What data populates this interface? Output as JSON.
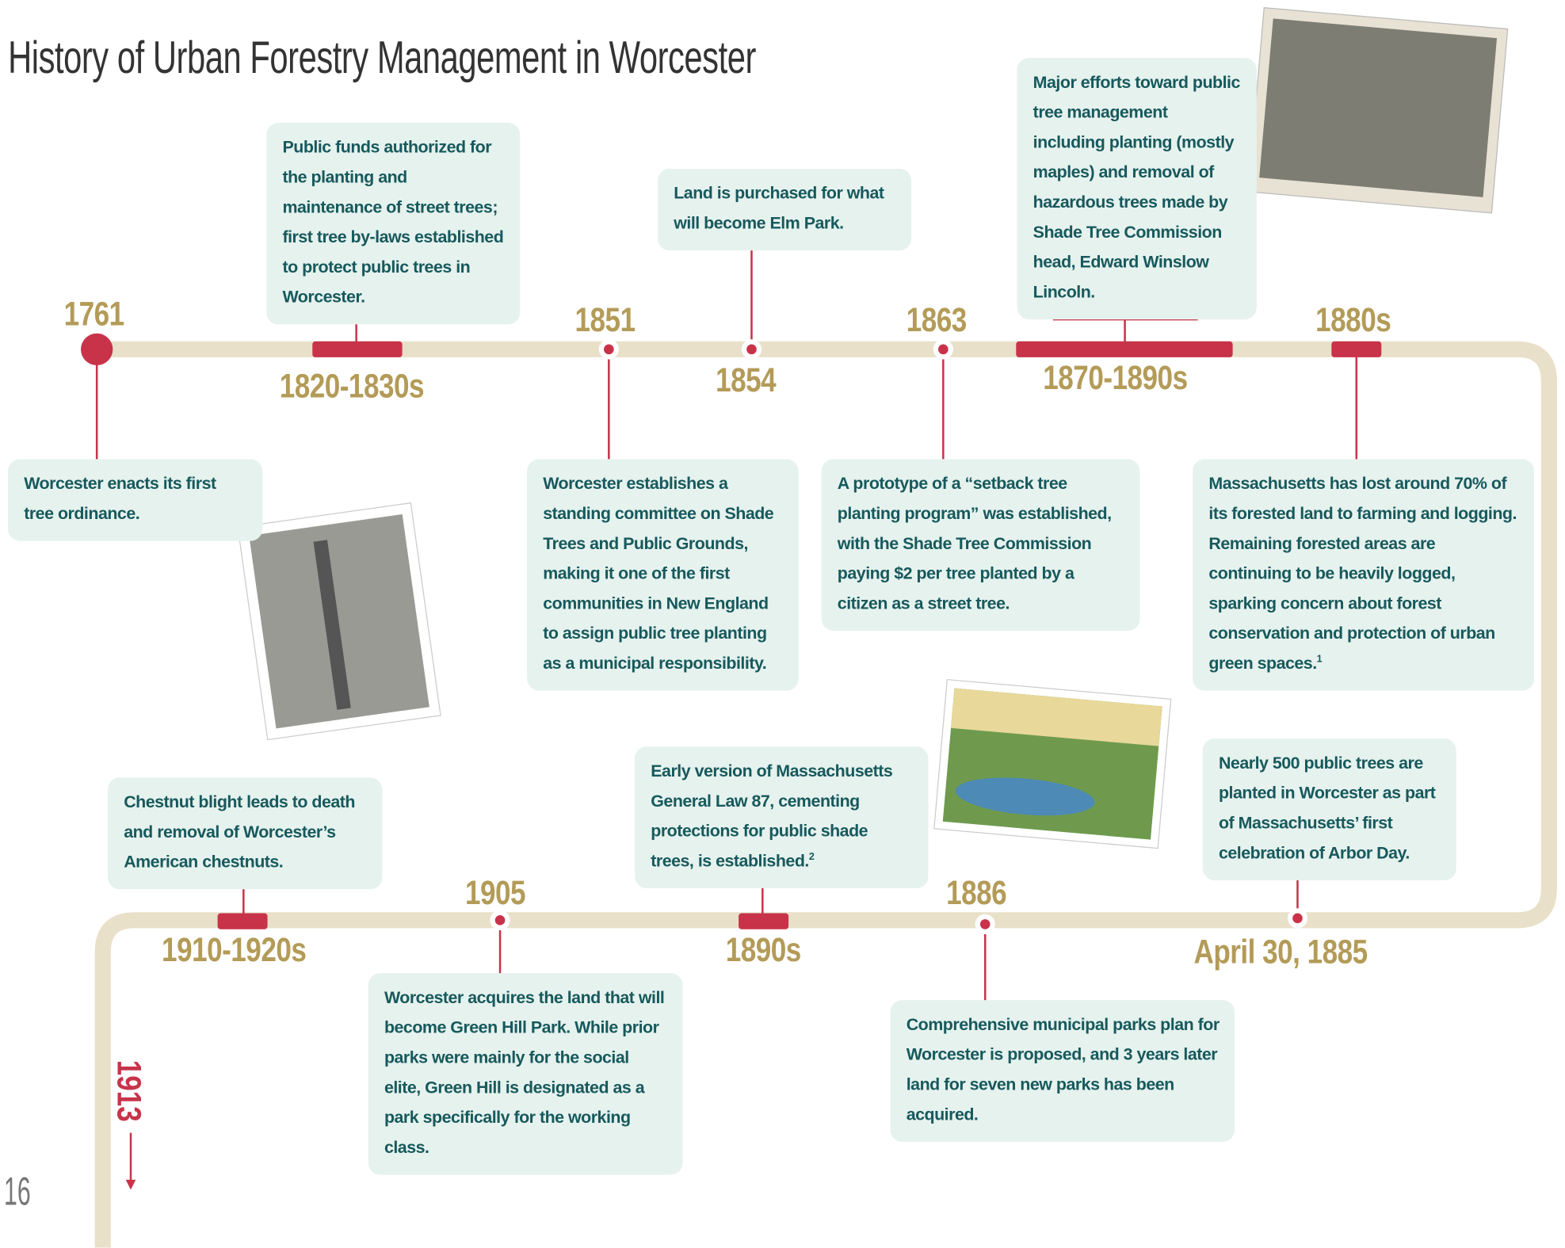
{
  "title": "History of Urban Forestry Management in Worcester",
  "page_number": "16",
  "continues": "1913",
  "events": [
    {
      "date": "1761",
      "text": "Worcester enacts its first tree ordinance."
    },
    {
      "date": "1820-1830s",
      "text": "Public funds authorized for the planting and maintenance of street trees; first tree by-laws established to protect public trees in Worcester."
    },
    {
      "date": "1851",
      "text": "Worcester establishes a standing committee on Shade Trees and Public Grounds, making it one of the first communities in New England to assign public tree planting as a municipal responsibility."
    },
    {
      "date": "1854",
      "text": "Land is purchased for what will become Elm Park."
    },
    {
      "date": "1863",
      "text": "A prototype of a “setback tree planting program” was established, with the Shade Tree Commission paying $2 per tree planted by a citizen as a street tree."
    },
    {
      "date": "1870-1890s",
      "text": "Major efforts toward public tree management including planting (mostly maples) and removal of hazardous trees made by Shade Tree Commission head, Edward Winslow Lincoln."
    },
    {
      "date": "1880s",
      "text": "Massachusetts has lost around 70% of its forested land to farming and logging. Remaining forested areas are continuing to be heavily logged, sparking concern about forest conservation and protection of urban green spaces.",
      "note": "1"
    },
    {
      "date": "April 30, 1885",
      "text": "Nearly 500 public trees are planted in Worcester as part of Massachusetts’ first celebration of Arbor Day."
    },
    {
      "date": "1886",
      "text": "Comprehensive municipal parks plan for Worcester is proposed, and 3 years later land for seven new parks has been acquired."
    },
    {
      "date": "1890s",
      "text": "Early version of Massachusetts General Law 87, cementing protections for public shade trees, is established.",
      "note": "2"
    },
    {
      "date": "1905",
      "text": "Worcester acquires the land that will become Green Hill Park. While prior parks were mainly for the social elite, Green Hill is designated as a park specifically for the working class."
    },
    {
      "date": "1910-1920s",
      "text": "Chestnut blight leads to death and removal of Worcester’s American chestnuts."
    }
  ]
}
